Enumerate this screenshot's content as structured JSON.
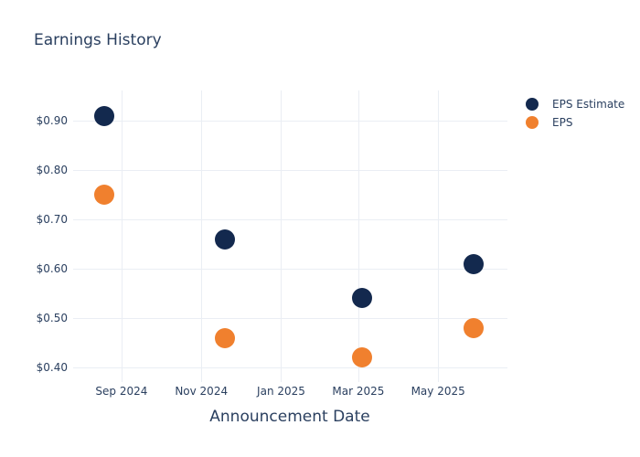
{
  "title": "Earnings History",
  "x_axis_title": "Announcement Date",
  "colors": {
    "text": "#2a3f5f",
    "grid": "#eaeef4",
    "background": "#ffffff",
    "eps_estimate": "#13294e",
    "eps": "#f0802e"
  },
  "legend": {
    "items": [
      "EPS Estimate",
      "EPS"
    ]
  },
  "chart_data": {
    "type": "scatter",
    "title": "Earnings History",
    "xlabel": "Announcement Date",
    "ylabel": "",
    "grid": true,
    "legend_position": "outside-top-right",
    "marker_size_px": 22,
    "x": [
      "2024-08-19",
      "2024-11-19",
      "2025-03-04",
      "2025-05-28"
    ],
    "series": [
      {
        "name": "EPS Estimate",
        "color": "#13294e",
        "values": [
          0.91,
          0.66,
          0.54,
          0.61
        ]
      },
      {
        "name": "EPS",
        "color": "#f0802e",
        "values": [
          0.75,
          0.46,
          0.42,
          0.48
        ]
      }
    ],
    "x_ticks": [
      {
        "label": "Sep 2024",
        "date": "2024-09-01"
      },
      {
        "label": "Nov 2024",
        "date": "2024-11-01"
      },
      {
        "label": "Jan 2025",
        "date": "2025-01-01"
      },
      {
        "label": "Mar 2025",
        "date": "2025-03-01"
      },
      {
        "label": "May 2025",
        "date": "2025-05-01"
      }
    ],
    "y_ticks": [
      {
        "label": "$0.90",
        "value": 0.9
      },
      {
        "label": "$0.80",
        "value": 0.8
      },
      {
        "label": "$0.70",
        "value": 0.7
      },
      {
        "label": "$0.60",
        "value": 0.6
      },
      {
        "label": "$0.50",
        "value": 0.5
      },
      {
        "label": "$0.40",
        "value": 0.4
      }
    ],
    "x_range": [
      "2024-07-26",
      "2025-06-23"
    ],
    "y_range": [
      0.3704,
      0.9611
    ]
  }
}
